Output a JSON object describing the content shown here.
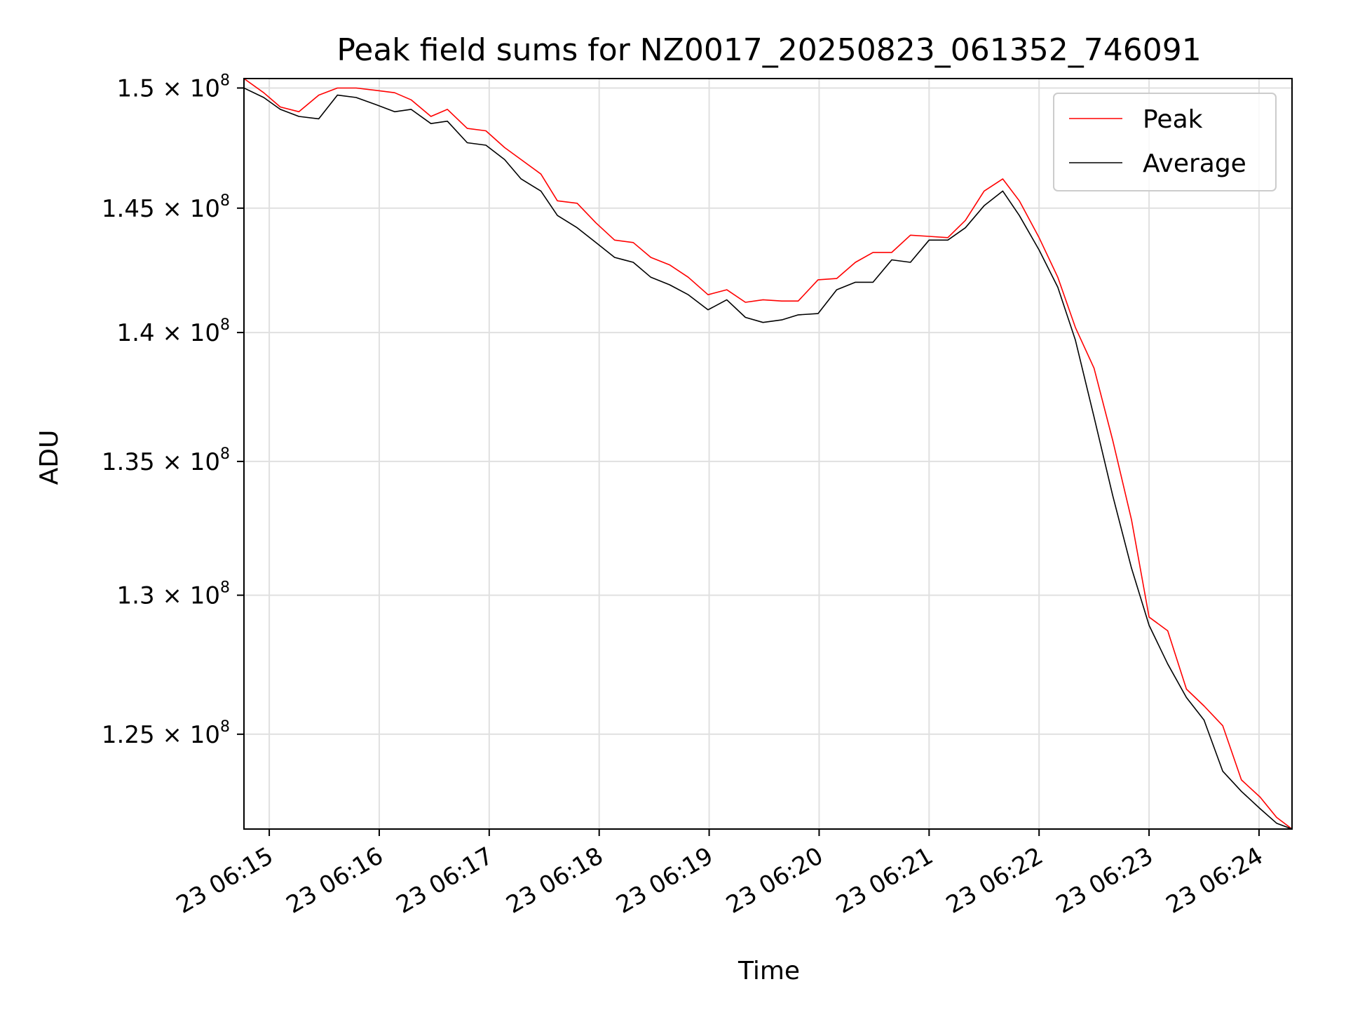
{
  "chart_data": {
    "type": "line",
    "title": "Peak field sums for NZ0017_20250823_061352_746091",
    "xlabel": "Time",
    "ylabel": "ADU",
    "x_unit": "minutes after 23 06:00",
    "xlim": [
      14.77,
      24.3
    ],
    "ylim": [
      121700000,
      150400000
    ],
    "y_scale": "log",
    "grid": true,
    "legend_position": "upper right",
    "xticks": [
      {
        "value": 15,
        "label": "23 06:15"
      },
      {
        "value": 16,
        "label": "23 06:16"
      },
      {
        "value": 17,
        "label": "23 06:17"
      },
      {
        "value": 18,
        "label": "23 06:18"
      },
      {
        "value": 19,
        "label": "23 06:19"
      },
      {
        "value": 20,
        "label": "23 06:20"
      },
      {
        "value": 21,
        "label": "23 06:21"
      },
      {
        "value": 22,
        "label": "23 06:22"
      },
      {
        "value": 23,
        "label": "23 06:23"
      },
      {
        "value": 24,
        "label": "23 06:24"
      }
    ],
    "yticks": [
      {
        "value": 125000000,
        "mantissa": "1.25",
        "exp": "8"
      },
      {
        "value": 130000000,
        "mantissa": "1.3",
        "exp": "8"
      },
      {
        "value": 135000000,
        "mantissa": "1.35",
        "exp": "8"
      },
      {
        "value": 140000000,
        "mantissa": "1.4",
        "exp": "8"
      },
      {
        "value": 145000000,
        "mantissa": "1.45",
        "exp": "8"
      },
      {
        "value": 150000000,
        "mantissa": "1.5",
        "exp": "8"
      }
    ],
    "x": [
      14.77,
      14.95,
      15.1,
      15.27,
      15.45,
      15.62,
      15.79,
      15.97,
      16.14,
      16.29,
      16.47,
      16.62,
      16.8,
      16.97,
      17.14,
      17.29,
      17.47,
      17.62,
      17.8,
      17.97,
      18.14,
      18.31,
      18.47,
      18.64,
      18.81,
      18.99,
      19.16,
      19.33,
      19.49,
      19.66,
      19.81,
      19.99,
      20.16,
      20.33,
      20.49,
      20.66,
      20.83,
      21.0,
      21.17,
      21.33,
      21.5,
      21.67,
      21.82,
      22.0,
      22.17,
      22.33,
      22.5,
      22.67,
      22.84,
      23.0,
      23.17,
      23.34,
      23.5,
      23.67,
      23.84,
      24.01,
      24.16,
      24.3
    ],
    "series": [
      {
        "name": "Peak",
        "color": "#ff0000",
        "values": [
          150400000,
          149800000,
          149200000,
          149000000,
          149700000,
          150000000,
          150000000,
          149900000,
          149800000,
          149500000,
          148800000,
          149100000,
          148300000,
          148200000,
          147500000,
          147000000,
          146400000,
          145300000,
          145200000,
          144400000,
          143700000,
          143600000,
          143000000,
          142700000,
          142200000,
          141500000,
          141700000,
          141200000,
          141300000,
          141250000,
          141250000,
          142100000,
          142150000,
          142800000,
          143200000,
          143200000,
          143900000,
          143850000,
          143800000,
          144500000,
          145700000,
          146200000,
          145300000,
          143800000,
          142200000,
          140200000,
          138600000,
          135800000,
          132800000,
          129200000,
          128700000,
          126600000,
          126000000,
          125300000,
          123400000,
          122800000,
          122100000,
          121700000
        ]
      },
      {
        "name": "Average",
        "color": "#000000",
        "values": [
          150000000,
          149600000,
          149100000,
          148800000,
          148700000,
          149700000,
          149600000,
          149300000,
          149000000,
          149100000,
          148500000,
          148600000,
          147700000,
          147600000,
          147000000,
          146200000,
          145700000,
          144700000,
          144200000,
          143600000,
          143000000,
          142800000,
          142200000,
          141900000,
          141500000,
          140900000,
          141300000,
          140600000,
          140400000,
          140500000,
          140700000,
          140750000,
          141700000,
          142000000,
          142000000,
          142900000,
          142800000,
          143700000,
          143700000,
          144200000,
          145100000,
          145700000,
          144700000,
          143300000,
          141800000,
          139700000,
          136700000,
          133700000,
          131000000,
          128900000,
          127500000,
          126300000,
          125500000,
          123700000,
          123000000,
          122400000,
          121900000,
          121700000
        ]
      }
    ]
  }
}
